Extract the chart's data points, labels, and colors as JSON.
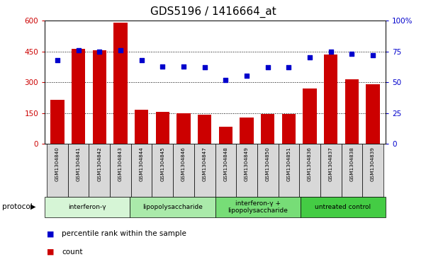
{
  "title": "GDS5196 / 1416664_at",
  "samples": [
    "GSM1304840",
    "GSM1304841",
    "GSM1304842",
    "GSM1304843",
    "GSM1304844",
    "GSM1304845",
    "GSM1304846",
    "GSM1304847",
    "GSM1304848",
    "GSM1304849",
    "GSM1304850",
    "GSM1304851",
    "GSM1304836",
    "GSM1304837",
    "GSM1304838",
    "GSM1304839"
  ],
  "counts": [
    215,
    462,
    455,
    590,
    165,
    155,
    148,
    142,
    82,
    130,
    145,
    145,
    270,
    435,
    315,
    290
  ],
  "percentiles": [
    68,
    76,
    75,
    76,
    68,
    63,
    63,
    62,
    52,
    55,
    62,
    62,
    70,
    75,
    73,
    72
  ],
  "groups": [
    {
      "label": "interferon-γ",
      "start": 0,
      "end": 4,
      "color": "#d6f5d6"
    },
    {
      "label": "lipopolysaccharide",
      "start": 4,
      "end": 8,
      "color": "#aaeaaa"
    },
    {
      "label": "interferon-γ +\nlipopolysaccharide",
      "start": 8,
      "end": 12,
      "color": "#77dd77"
    },
    {
      "label": "untreated control",
      "start": 12,
      "end": 16,
      "color": "#44cc44"
    }
  ],
  "ylim_left": [
    0,
    600
  ],
  "ylim_right": [
    0,
    100
  ],
  "yticks_left": [
    0,
    150,
    300,
    450,
    600
  ],
  "yticks_right": [
    0,
    25,
    50,
    75,
    100
  ],
  "bar_color": "#cc0000",
  "dot_color": "#0000cc",
  "grid_color": "#000000",
  "sample_box_color": "#d8d8d8",
  "title_fontsize": 11,
  "axis_label_color_left": "#cc0000",
  "axis_label_color_right": "#0000cc",
  "protocol_label": "protocol"
}
